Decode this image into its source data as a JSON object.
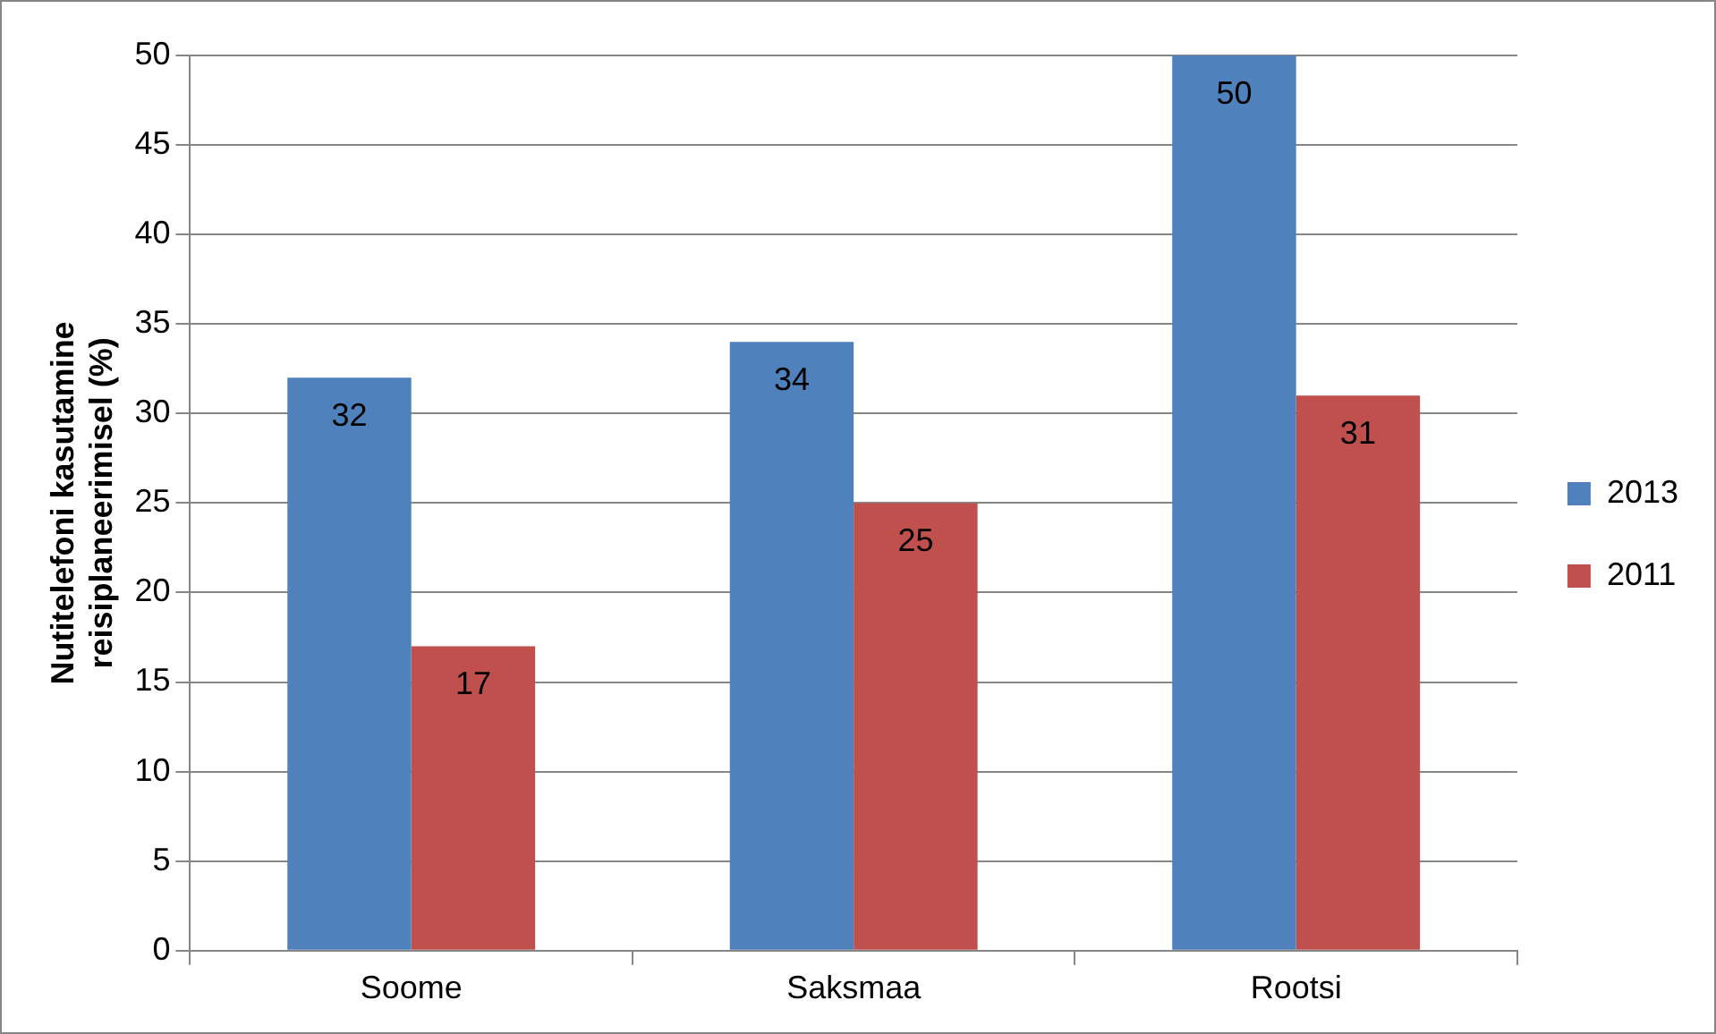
{
  "chart_data": {
    "type": "bar",
    "ylabel": "Nutitelefoni kasutamine reisiplaneerimisel (%)",
    "categories": [
      "Soome",
      "Saksmaa",
      "Rootsi"
    ],
    "series": [
      {
        "name": "2013",
        "color": "#4f81bd",
        "values": [
          32,
          34,
          50
        ]
      },
      {
        "name": "2011",
        "color": "#c0504d",
        "values": [
          17,
          25,
          31
        ]
      }
    ],
    "ylim": [
      0,
      50
    ],
    "yticks": [
      0,
      5,
      10,
      15,
      20,
      25,
      30,
      35,
      40,
      45,
      50
    ],
    "grid": "y",
    "legend": "right",
    "data_labels": true
  }
}
